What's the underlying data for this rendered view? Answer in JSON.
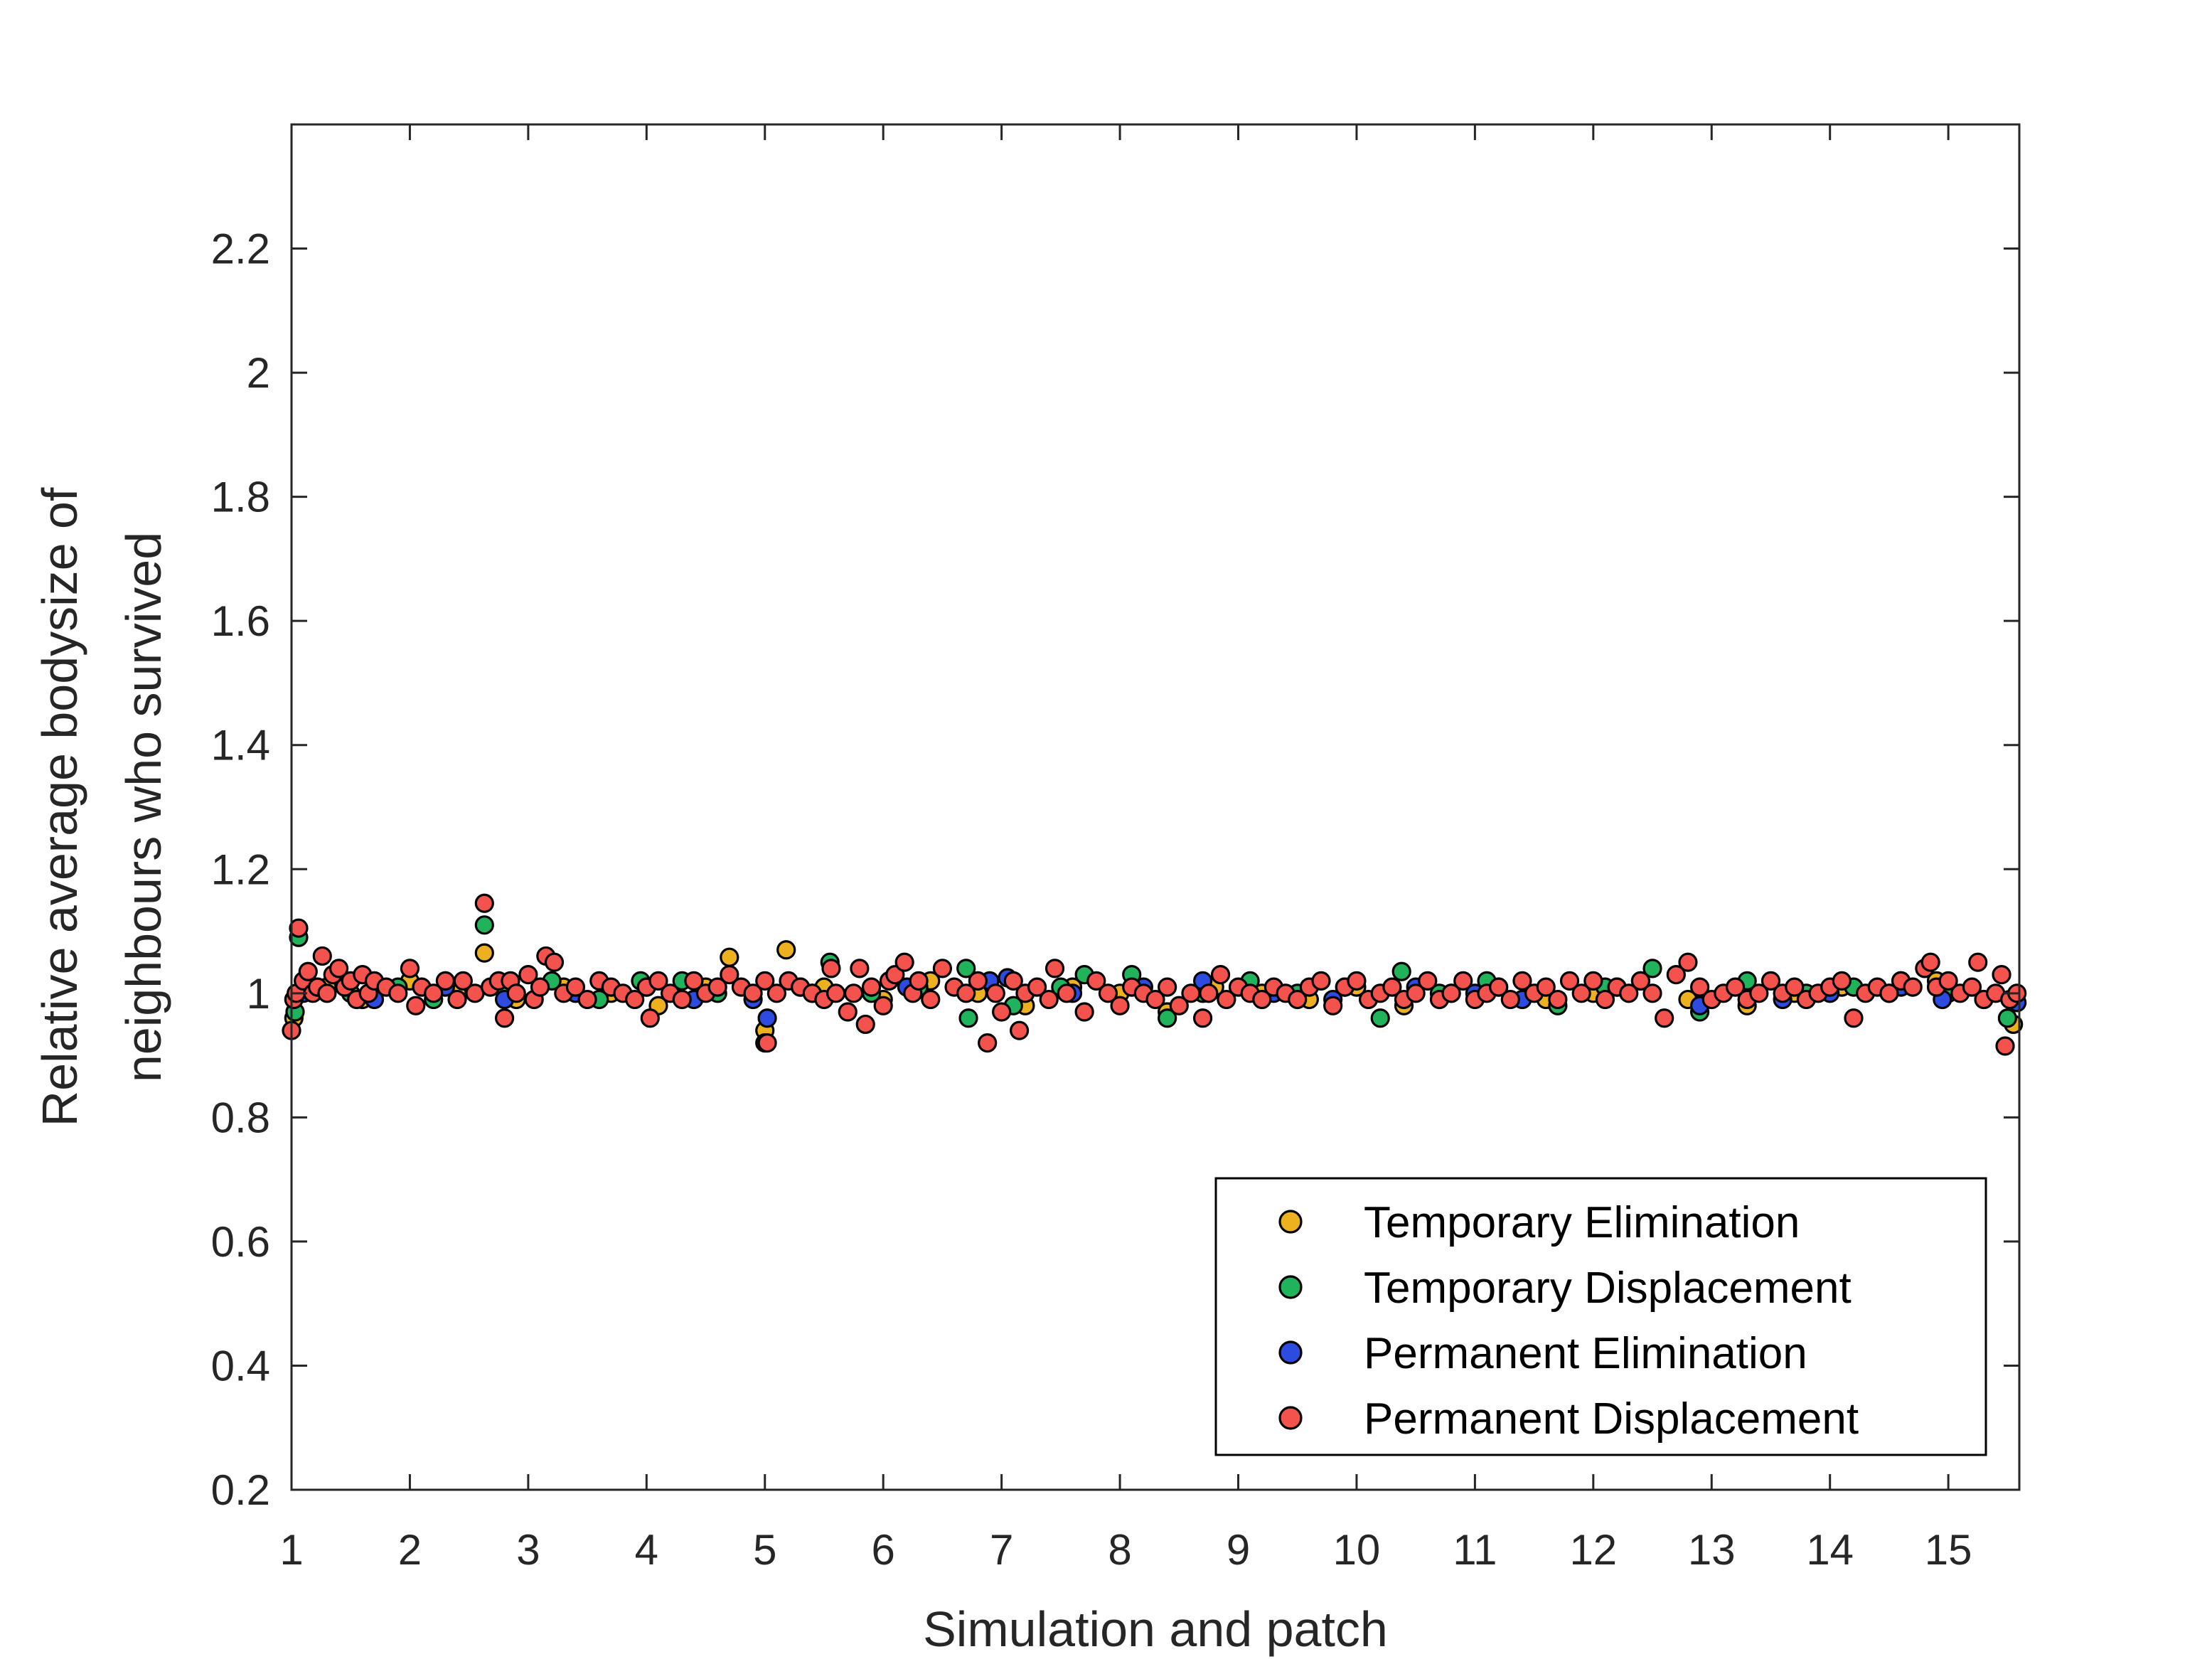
{
  "chart_data": {
    "type": "scatter",
    "title": "",
    "xlabel": "Simulation and patch",
    "ylabel_lines": [
      "Relative average bodysize of",
      "neighbours who survived"
    ],
    "xlim": [
      1,
      15.6
    ],
    "ylim": [
      0.2,
      2.4
    ],
    "x_ticks": [
      1,
      2,
      3,
      4,
      5,
      6,
      7,
      8,
      9,
      10,
      11,
      12,
      13,
      14,
      15
    ],
    "x_tick_labels": [
      "1",
      "2",
      "3",
      "4",
      "5",
      "6",
      "7",
      "8",
      "9",
      "10",
      "11",
      "12",
      "13",
      "14",
      "15"
    ],
    "y_ticks": [
      0.2,
      0.4,
      0.6,
      0.8,
      1.0,
      1.2,
      1.4,
      1.6,
      1.8,
      2.0,
      2.2
    ],
    "y_tick_labels": [
      "0.2",
      "0.4",
      "0.6",
      "0.8",
      "1",
      "1.2",
      "1.4",
      "1.6",
      "1.8",
      "2",
      "2.2"
    ],
    "grid": false,
    "legend_position": "bottom-right",
    "series": [
      {
        "name": "Temporary Elimination",
        "color": "#EDB120",
        "points": [
          [
            1.02,
            0.96
          ],
          [
            1.05,
            1.0
          ],
          [
            1.3,
            1.01
          ],
          [
            1.6,
            0.99
          ],
          [
            2.0,
            1.02
          ],
          [
            2.4,
            1.0
          ],
          [
            2.63,
            1.065
          ],
          [
            2.9,
            0.99
          ],
          [
            3.3,
            1.01
          ],
          [
            3.7,
            1.0
          ],
          [
            4.1,
            0.98
          ],
          [
            4.5,
            1.01
          ],
          [
            4.7,
            1.058
          ],
          [
            5.0,
            0.94
          ],
          [
            5.18,
            1.07
          ],
          [
            5.5,
            1.01
          ],
          [
            6.0,
            0.99
          ],
          [
            6.4,
            1.02
          ],
          [
            6.8,
            1.0
          ],
          [
            7.2,
            0.98
          ],
          [
            7.6,
            1.01
          ],
          [
            8.0,
            1.0
          ],
          [
            8.4,
            0.97
          ],
          [
            8.8,
            1.01
          ],
          [
            9.2,
            1.0
          ],
          [
            9.6,
            0.99
          ],
          [
            10.0,
            1.01
          ],
          [
            10.4,
            0.98
          ],
          [
            10.8,
            1.0
          ],
          [
            11.2,
            1.01
          ],
          [
            11.6,
            0.99
          ],
          [
            12.0,
            1.0
          ],
          [
            12.4,
            1.02
          ],
          [
            12.8,
            0.99
          ],
          [
            13.3,
            0.98
          ],
          [
            13.7,
            1.0
          ],
          [
            14.1,
            1.01
          ],
          [
            14.5,
            1.0
          ],
          [
            14.9,
            1.02
          ],
          [
            15.3,
            0.99
          ],
          [
            15.55,
            0.95
          ]
        ]
      },
      {
        "name": "Temporary Displacement",
        "color": "#21B35C",
        "points": [
          [
            1.03,
            0.97
          ],
          [
            1.06,
            1.09
          ],
          [
            1.2,
            1.01
          ],
          [
            1.5,
            1.0
          ],
          [
            1.9,
            1.01
          ],
          [
            2.2,
            0.99
          ],
          [
            2.63,
            1.11
          ],
          [
            2.8,
            1.01
          ],
          [
            3.2,
            1.02
          ],
          [
            3.6,
            0.99
          ],
          [
            3.95,
            1.02
          ],
          [
            4.3,
            1.02
          ],
          [
            4.6,
            1.0
          ],
          [
            5.0,
            0.92
          ],
          [
            5.3,
            1.01
          ],
          [
            5.55,
            1.05
          ],
          [
            5.9,
            1.0
          ],
          [
            6.3,
            1.01
          ],
          [
            6.7,
            1.04
          ],
          [
            6.72,
            0.96
          ],
          [
            7.1,
            0.98
          ],
          [
            7.5,
            1.01
          ],
          [
            7.7,
            1.03
          ],
          [
            8.1,
            1.03
          ],
          [
            8.4,
            0.96
          ],
          [
            8.7,
            1.0
          ],
          [
            9.1,
            1.02
          ],
          [
            9.5,
            1.0
          ],
          [
            9.9,
            1.01
          ],
          [
            10.2,
            0.96
          ],
          [
            10.38,
            1.035
          ],
          [
            10.7,
            1.0
          ],
          [
            11.1,
            1.02
          ],
          [
            11.7,
            0.98
          ],
          [
            12.1,
            1.01
          ],
          [
            12.5,
            1.04
          ],
          [
            12.9,
            0.97
          ],
          [
            13.3,
            1.02
          ],
          [
            13.8,
            1.0
          ],
          [
            14.2,
            1.01
          ],
          [
            14.6,
            1.02
          ],
          [
            15.0,
            1.0
          ],
          [
            15.5,
            0.96
          ]
        ]
      },
      {
        "name": "Permanent Elimination",
        "color": "#2E4BE0",
        "points": [
          [
            1.1,
            1.0
          ],
          [
            1.7,
            0.99
          ],
          [
            2.3,
            1.01
          ],
          [
            2.8,
            0.99
          ],
          [
            3.4,
            1.0
          ],
          [
            4.0,
            1.01
          ],
          [
            4.4,
            0.99
          ],
          [
            4.9,
            0.99
          ],
          [
            5.02,
            0.96
          ],
          [
            5.4,
            1.0
          ],
          [
            6.2,
            1.01
          ],
          [
            6.9,
            1.02
          ],
          [
            7.05,
            1.025
          ],
          [
            7.6,
            1.0
          ],
          [
            8.2,
            1.01
          ],
          [
            8.7,
            1.02
          ],
          [
            9.3,
            1.0
          ],
          [
            9.8,
            0.99
          ],
          [
            10.5,
            1.01
          ],
          [
            11.0,
            1.0
          ],
          [
            11.4,
            0.99
          ],
          [
            12.2,
            1.01
          ],
          [
            12.9,
            0.98
          ],
          [
            13.6,
            0.99
          ],
          [
            14.0,
            1.0
          ],
          [
            14.6,
            1.01
          ],
          [
            14.95,
            0.99
          ],
          [
            15.58,
            0.985
          ]
        ]
      },
      {
        "name": "Permanent Displacement",
        "color": "#F4534D",
        "points": [
          [
            1.0,
            0.94
          ],
          [
            1.02,
            0.99
          ],
          [
            1.04,
            1.0
          ],
          [
            1.06,
            1.105
          ],
          [
            1.1,
            1.02
          ],
          [
            1.14,
            1.035
          ],
          [
            1.18,
            1.0
          ],
          [
            1.22,
            1.01
          ],
          [
            1.26,
            1.06
          ],
          [
            1.3,
            1.0
          ],
          [
            1.35,
            1.03
          ],
          [
            1.4,
            1.04
          ],
          [
            1.45,
            1.01
          ],
          [
            1.5,
            1.02
          ],
          [
            1.55,
            0.99
          ],
          [
            1.6,
            1.03
          ],
          [
            1.65,
            1.0
          ],
          [
            1.7,
            1.02
          ],
          [
            1.8,
            1.01
          ],
          [
            1.9,
            1.0
          ],
          [
            2.0,
            1.04
          ],
          [
            2.05,
            0.98
          ],
          [
            2.1,
            1.01
          ],
          [
            2.2,
            1.0
          ],
          [
            2.3,
            1.02
          ],
          [
            2.4,
            0.99
          ],
          [
            2.45,
            1.02
          ],
          [
            2.55,
            1.0
          ],
          [
            2.63,
            1.145
          ],
          [
            2.68,
            1.01
          ],
          [
            2.75,
            1.02
          ],
          [
            2.8,
            0.96
          ],
          [
            2.85,
            1.02
          ],
          [
            2.9,
            1.0
          ],
          [
            3.0,
            1.03
          ],
          [
            3.05,
            0.99
          ],
          [
            3.1,
            1.01
          ],
          [
            3.15,
            1.06
          ],
          [
            3.22,
            1.05
          ],
          [
            3.3,
            1.0
          ],
          [
            3.4,
            1.01
          ],
          [
            3.5,
            0.99
          ],
          [
            3.6,
            1.02
          ],
          [
            3.7,
            1.01
          ],
          [
            3.8,
            1.0
          ],
          [
            3.9,
            0.99
          ],
          [
            4.0,
            1.01
          ],
          [
            4.03,
            0.96
          ],
          [
            4.1,
            1.02
          ],
          [
            4.2,
            1.0
          ],
          [
            4.3,
            0.99
          ],
          [
            4.4,
            1.02
          ],
          [
            4.5,
            1.0
          ],
          [
            4.6,
            1.01
          ],
          [
            4.7,
            1.03
          ],
          [
            4.8,
            1.01
          ],
          [
            4.9,
            1.0
          ],
          [
            5.0,
            1.02
          ],
          [
            5.02,
            0.92
          ],
          [
            5.1,
            1.0
          ],
          [
            5.2,
            1.02
          ],
          [
            5.3,
            1.01
          ],
          [
            5.4,
            1.0
          ],
          [
            5.5,
            0.99
          ],
          [
            5.56,
            1.04
          ],
          [
            5.6,
            1.0
          ],
          [
            5.7,
            0.97
          ],
          [
            5.75,
            1.0
          ],
          [
            5.8,
            1.04
          ],
          [
            5.85,
            0.95
          ],
          [
            5.9,
            1.01
          ],
          [
            6.0,
            0.98
          ],
          [
            6.05,
            1.02
          ],
          [
            6.1,
            1.03
          ],
          [
            6.18,
            1.05
          ],
          [
            6.25,
            1.0
          ],
          [
            6.3,
            1.02
          ],
          [
            6.4,
            0.99
          ],
          [
            6.5,
            1.04
          ],
          [
            6.6,
            1.01
          ],
          [
            6.7,
            1.0
          ],
          [
            6.8,
            1.02
          ],
          [
            6.88,
            0.92
          ],
          [
            6.95,
            1.0
          ],
          [
            7.0,
            0.97
          ],
          [
            7.1,
            1.02
          ],
          [
            7.15,
            0.94
          ],
          [
            7.2,
            1.0
          ],
          [
            7.3,
            1.01
          ],
          [
            7.4,
            0.99
          ],
          [
            7.45,
            1.04
          ],
          [
            7.55,
            1.0
          ],
          [
            7.7,
            0.97
          ],
          [
            7.8,
            1.02
          ],
          [
            7.9,
            1.0
          ],
          [
            8.0,
            0.98
          ],
          [
            8.1,
            1.01
          ],
          [
            8.2,
            1.0
          ],
          [
            8.3,
            0.99
          ],
          [
            8.4,
            1.01
          ],
          [
            8.5,
            0.98
          ],
          [
            8.6,
            1.0
          ],
          [
            8.7,
            0.96
          ],
          [
            8.75,
            1.0
          ],
          [
            8.85,
            1.03
          ],
          [
            8.9,
            0.99
          ],
          [
            9.0,
            1.01
          ],
          [
            9.1,
            1.0
          ],
          [
            9.2,
            0.99
          ],
          [
            9.3,
            1.01
          ],
          [
            9.4,
            1.0
          ],
          [
            9.5,
            0.99
          ],
          [
            9.6,
            1.01
          ],
          [
            9.7,
            1.02
          ],
          [
            9.8,
            0.98
          ],
          [
            9.9,
            1.01
          ],
          [
            10.0,
            1.02
          ],
          [
            10.1,
            0.99
          ],
          [
            10.2,
            1.0
          ],
          [
            10.3,
            1.01
          ],
          [
            10.4,
            0.99
          ],
          [
            10.5,
            1.0
          ],
          [
            10.6,
            1.02
          ],
          [
            10.7,
            0.99
          ],
          [
            10.8,
            1.0
          ],
          [
            10.9,
            1.02
          ],
          [
            11.0,
            0.99
          ],
          [
            11.1,
            1.0
          ],
          [
            11.2,
            1.01
          ],
          [
            11.3,
            0.99
          ],
          [
            11.4,
            1.02
          ],
          [
            11.5,
            1.0
          ],
          [
            11.6,
            1.01
          ],
          [
            11.7,
            0.99
          ],
          [
            11.8,
            1.02
          ],
          [
            11.9,
            1.0
          ],
          [
            12.0,
            1.02
          ],
          [
            12.1,
            0.99
          ],
          [
            12.2,
            1.01
          ],
          [
            12.3,
            1.0
          ],
          [
            12.4,
            1.02
          ],
          [
            12.5,
            1.0
          ],
          [
            12.6,
            0.96
          ],
          [
            12.7,
            1.03
          ],
          [
            12.8,
            1.05
          ],
          [
            12.9,
            1.01
          ],
          [
            13.0,
            0.99
          ],
          [
            13.1,
            1.0
          ],
          [
            13.2,
            1.01
          ],
          [
            13.3,
            0.99
          ],
          [
            13.4,
            1.0
          ],
          [
            13.5,
            1.02
          ],
          [
            13.6,
            1.0
          ],
          [
            13.7,
            1.01
          ],
          [
            13.8,
            0.99
          ],
          [
            13.9,
            1.0
          ],
          [
            14.0,
            1.01
          ],
          [
            14.1,
            1.02
          ],
          [
            14.2,
            0.96
          ],
          [
            14.3,
            1.0
          ],
          [
            14.4,
            1.01
          ],
          [
            14.5,
            1.0
          ],
          [
            14.6,
            1.02
          ],
          [
            14.7,
            1.01
          ],
          [
            14.8,
            1.04
          ],
          [
            14.85,
            1.05
          ],
          [
            14.9,
            1.01
          ],
          [
            15.0,
            1.02
          ],
          [
            15.1,
            1.0
          ],
          [
            15.2,
            1.01
          ],
          [
            15.25,
            1.05
          ],
          [
            15.3,
            0.99
          ],
          [
            15.4,
            1.0
          ],
          [
            15.45,
            1.03
          ],
          [
            15.48,
            0.915
          ],
          [
            15.52,
            0.99
          ],
          [
            15.58,
            1.0
          ]
        ]
      }
    ]
  }
}
